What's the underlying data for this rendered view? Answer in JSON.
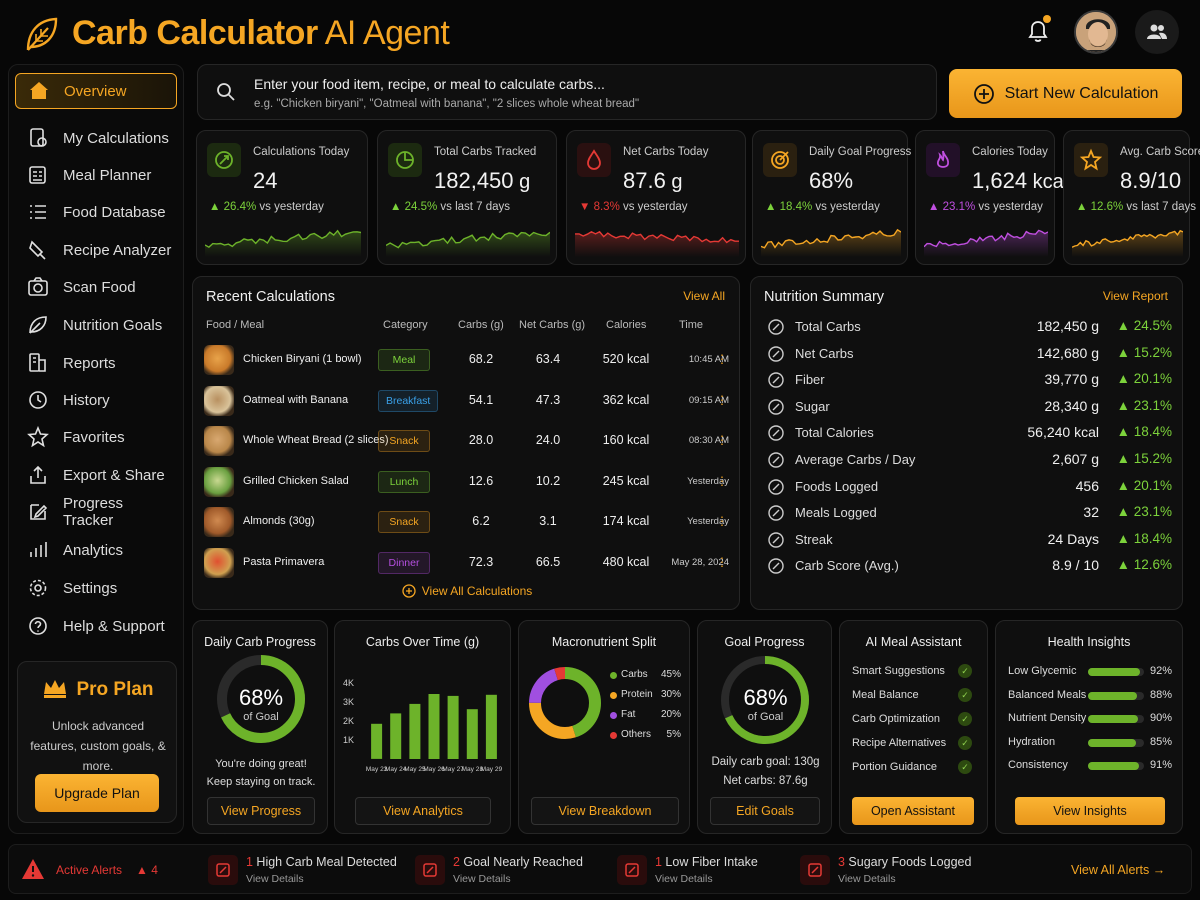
{
  "header": {
    "title_main": "Carb Calculator",
    "title_light": " AI Agent"
  },
  "sidebar": {
    "items": [
      {
        "label": "Overview",
        "icon": "home-icon"
      },
      {
        "label": "My Calculations",
        "icon": "calculator-icon"
      },
      {
        "label": "Meal Planner",
        "icon": "planner-icon"
      },
      {
        "label": "Food Database",
        "icon": "list-icon"
      },
      {
        "label": "Recipe Analyzer",
        "icon": "recipe-icon"
      },
      {
        "label": "Scan Food",
        "icon": "camera-icon"
      },
      {
        "label": "Nutrition Goals",
        "icon": "leaf-icon"
      },
      {
        "label": "Reports",
        "icon": "reports-icon"
      },
      {
        "label": "History",
        "icon": "history-icon"
      },
      {
        "label": "Favorites",
        "icon": "star-icon"
      },
      {
        "label": "Export & Share",
        "icon": "share-icon"
      },
      {
        "label": "Progress Tracker",
        "icon": "edit-icon"
      },
      {
        "label": "Analytics",
        "icon": "analytics-icon"
      },
      {
        "label": "Settings",
        "icon": "gear-icon"
      },
      {
        "label": "Help & Support",
        "icon": "help-icon"
      }
    ],
    "pro": {
      "title": "Pro Plan",
      "desc": "Unlock advanced features, custom goals, & more.",
      "button": "Upgrade Plan"
    }
  },
  "search": {
    "main": "Enter your food item, recipe, or meal to calculate carbs...",
    "example": "e.g. \"Chicken biryani\", \"Oatmeal with banana\", \"2 slices whole wheat bread\""
  },
  "start_button": "Start New Calculation",
  "stats": [
    {
      "label": "Calculations Today",
      "value": "24",
      "unit": "",
      "trend": "▲ 26.4%",
      "trend_text": " vs yesterday",
      "color": "#6db32a",
      "up": true
    },
    {
      "label": "Total Carbs Tracked",
      "value": "182,450",
      "unit": " g",
      "trend": "▲ 24.5%",
      "trend_text": " vs last 7 days",
      "color": "#6db32a",
      "up": true
    },
    {
      "label": "Net Carbs Today",
      "value": "87.6",
      "unit": " g",
      "trend": "▼ 8.3%",
      "trend_text": " vs yesterday",
      "color": "#e53935",
      "up": false
    },
    {
      "label": "Daily Goal Progress",
      "value": "68%",
      "unit": "",
      "trend": "▲ 18.4%",
      "trend_text": " vs yesterday",
      "color": "#f5a623",
      "up": true
    },
    {
      "label": "Calories Today",
      "value": "1,624",
      "unit": " kcal",
      "trend": "▲ 23.1%",
      "trend_text": " vs yesterday",
      "color": "#c04fe0",
      "up": true
    },
    {
      "label": "Avg. Carb Score",
      "value": "8.9/10",
      "unit": "",
      "trend": "▲ 12.6%",
      "trend_text": " vs last 7 days",
      "color": "#f5a623",
      "up": true
    }
  ],
  "recent": {
    "title": "Recent Calculations",
    "link": "View All",
    "headers": [
      "Food / Meal",
      "Category",
      "Carbs (g)",
      "Net Carbs (g)",
      "Calories",
      "Time"
    ],
    "rows": [
      {
        "name": "Chicken Biryani (1 bowl)",
        "category": "Meal",
        "cat_color": "#7cd23b",
        "carbs": "68.2",
        "net": "63.4",
        "cal": "520 kcal",
        "time": "10:45 AM"
      },
      {
        "name": "Oatmeal with Banana",
        "category": "Breakfast",
        "cat_color": "#3aa0e8",
        "carbs": "54.1",
        "net": "47.3",
        "cal": "362 kcal",
        "time": "09:15 AM"
      },
      {
        "name": "Whole Wheat Bread (2 slices)",
        "category": "Snack",
        "cat_color": "#f5a623",
        "carbs": "28.0",
        "net": "24.0",
        "cal": "160 kcal",
        "time": "08:30 AM"
      },
      {
        "name": "Grilled Chicken Salad",
        "category": "Lunch",
        "cat_color": "#7cd23b",
        "carbs": "12.6",
        "net": "10.2",
        "cal": "245 kcal",
        "time": "Yesterday"
      },
      {
        "name": "Almonds (30g)",
        "category": "Snack",
        "cat_color": "#f5a623",
        "carbs": "6.2",
        "net": "3.1",
        "cal": "174 kcal",
        "time": "Yesterday"
      },
      {
        "name": "Pasta Primavera",
        "category": "Dinner",
        "cat_color": "#b54fe0",
        "carbs": "72.3",
        "net": "66.5",
        "cal": "480 kcal",
        "time": "May 28, 2024"
      }
    ],
    "footer_link": "View All Calculations"
  },
  "nutrition": {
    "title": "Nutrition Summary",
    "link": "View Report",
    "rows": [
      {
        "label": "Total Carbs",
        "value": "182,450 g",
        "change": "▲ 24.5%"
      },
      {
        "label": "Net Carbs",
        "value": "142,680 g",
        "change": "▲ 15.2%"
      },
      {
        "label": "Fiber",
        "value": "39,770 g",
        "change": "▲ 20.1%"
      },
      {
        "label": "Sugar",
        "value": "28,340 g",
        "change": "▲ 23.1%"
      },
      {
        "label": "Total Calories",
        "value": "56,240 kcal",
        "change": "▲ 18.4%"
      },
      {
        "label": "Average Carbs / Day",
        "value": "2,607 g",
        "change": "▲ 15.2%"
      },
      {
        "label": "Foods Logged",
        "value": "456",
        "change": "▲ 20.1%"
      },
      {
        "label": "Meals Logged",
        "value": "32",
        "change": "▲ 23.1%"
      },
      {
        "label": "Streak",
        "value": "24 Days",
        "change": "▲ 18.4%"
      },
      {
        "label": "Carb Score (Avg.)",
        "value": "8.9 / 10",
        "change": "▲ 12.6%"
      }
    ]
  },
  "daily_progress": {
    "title": "Daily Carb Progress",
    "percent": 68,
    "value": "68%",
    "sub": "of Goal",
    "msg": "You're doing great! Keep staying on track.",
    "button": "View Progress"
  },
  "carbs_over_time": {
    "title": "Carbs Over Time (g)",
    "button": "View Analytics"
  },
  "chart_data": {
    "type": "bar",
    "title": "Carbs Over Time (g)",
    "categories": [
      "May 23",
      "May 24",
      "May 25",
      "May 26",
      "May 27",
      "May 28",
      "May 29"
    ],
    "values": [
      1850,
      2400,
      2900,
      3420,
      3320,
      2620,
      3380
    ],
    "ylim": [
      0,
      4000
    ],
    "yticks": [
      "",
      "1K",
      "2K",
      "3K",
      "4K"
    ]
  },
  "macro": {
    "title": "Macronutrient Split",
    "items": [
      {
        "label": "Carbs",
        "value": "45%",
        "pct": 45,
        "color": "#6db32a"
      },
      {
        "label": "Protein",
        "value": "30%",
        "pct": 30,
        "color": "#f5a623"
      },
      {
        "label": "Fat",
        "value": "20%",
        "pct": 20,
        "color": "#a04fe0"
      },
      {
        "label": "Others",
        "value": "5%",
        "pct": 5,
        "color": "#e53935"
      }
    ],
    "button": "View Breakdown"
  },
  "goal": {
    "title": "Goal Progress",
    "percent": 68,
    "value": "68%",
    "sub": "of Goal",
    "line1": "Daily carb goal: 130g",
    "line2": "Net carbs: 87.6g",
    "button": "Edit Goals"
  },
  "ai": {
    "title": "AI Meal Assistant",
    "items": [
      "Smart Suggestions",
      "Meal Balance",
      "Carb Optimization",
      "Recipe Alternatives",
      "Portion Guidance"
    ],
    "button": "Open Assistant"
  },
  "health": {
    "title": "Health Insights",
    "items": [
      {
        "label": "Low Glycemic",
        "value": "92%",
        "pct": 92
      },
      {
        "label": "Balanced Meals",
        "value": "88%",
        "pct": 88
      },
      {
        "label": "Nutrient Density",
        "value": "90%",
        "pct": 90
      },
      {
        "label": "Hydration",
        "value": "85%",
        "pct": 85
      },
      {
        "label": "Consistency",
        "value": "91%",
        "pct": 91
      }
    ],
    "button": "View Insights"
  },
  "alerts": {
    "label": "Active Alerts",
    "count": "4",
    "items": [
      {
        "n": "1",
        "title": " High Carb Meal Detected",
        "sub": "View Details"
      },
      {
        "n": "2",
        "title": " Goal Nearly Reached",
        "sub": "View Details"
      },
      {
        "n": "1",
        "title": " Low Fiber Intake",
        "sub": "View Details"
      },
      {
        "n": "3",
        "title": " Sugary Foods Logged",
        "sub": "View Details"
      }
    ],
    "link": "View All Alerts"
  }
}
